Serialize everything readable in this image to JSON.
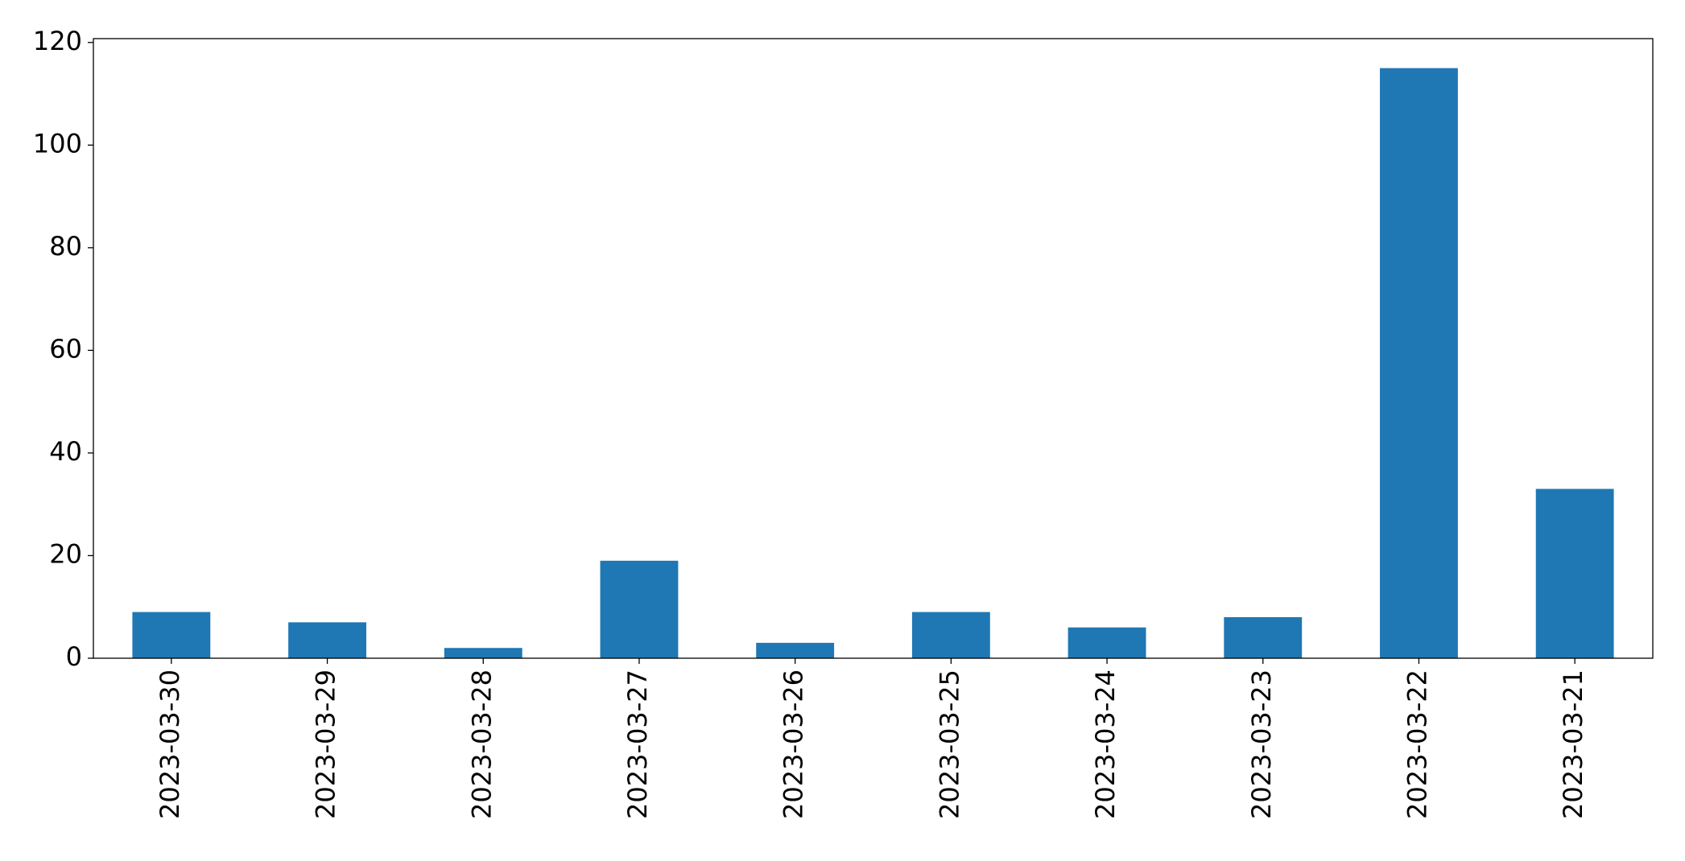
{
  "chart_data": {
    "type": "bar",
    "categories": [
      "2023-03-30",
      "2023-03-29",
      "2023-03-28",
      "2023-03-27",
      "2023-03-26",
      "2023-03-25",
      "2023-03-24",
      "2023-03-23",
      "2023-03-22",
      "2023-03-21"
    ],
    "values": [
      9,
      7,
      2,
      19,
      3,
      9,
      6,
      8,
      115,
      33
    ],
    "color": "#1f77b4",
    "ylim": [
      0,
      120.75
    ],
    "yticks": [
      0,
      20,
      40,
      60,
      80,
      100,
      120
    ],
    "grid": false
  }
}
